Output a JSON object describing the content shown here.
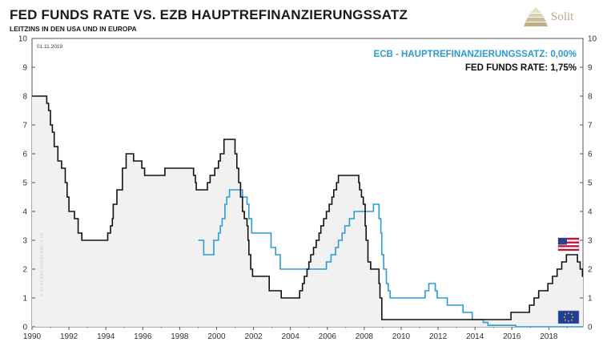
{
  "header": {
    "title": "FED FUNDS RATE  VS.  EZB HAUPTREFINANZIERUNGSSATZ",
    "subtitle": "LEITZINS IN DEN USA UND IN EUROPA"
  },
  "brand": {
    "logo_text": "Solit",
    "logo_color": "#b9a98a"
  },
  "watermark": "© BLACKBOXRESEARCH.DE",
  "chart_data": {
    "type": "line",
    "date_label": "01.11.2019",
    "xlim": [
      1990,
      2019.85
    ],
    "ylim": [
      0,
      10
    ],
    "x_ticks": [
      "1990",
      "1992",
      "1994",
      "1996",
      "1998",
      "2000",
      "2002",
      "2004",
      "2006",
      "2008",
      "2010",
      "2012",
      "2014",
      "2016",
      "2018"
    ],
    "y_ticks": [
      "0",
      "1",
      "2",
      "3",
      "4",
      "5",
      "6",
      "7",
      "8",
      "9",
      "10"
    ],
    "grid": false,
    "legend_placement": "top-right",
    "series": [
      {
        "name": "ECB - HAUPTREFINANZIERUNGSSATZ",
        "legend_label": "ECB - HAUPTREFINANZIERUNGSSATZ: 0,00%",
        "latest": "0,00%",
        "color": "#2b9bd6",
        "step": true,
        "points": [
          [
            1999.0,
            3.0
          ],
          [
            1999.3,
            2.5
          ],
          [
            1999.85,
            3.0
          ],
          [
            2000.1,
            3.25
          ],
          [
            2000.2,
            3.5
          ],
          [
            2000.3,
            3.75
          ],
          [
            2000.45,
            4.25
          ],
          [
            2000.55,
            4.5
          ],
          [
            2000.7,
            4.75
          ],
          [
            2001.4,
            4.5
          ],
          [
            2001.65,
            4.25
          ],
          [
            2001.75,
            3.75
          ],
          [
            2001.9,
            3.25
          ],
          [
            2002.95,
            2.75
          ],
          [
            2003.2,
            2.5
          ],
          [
            2003.45,
            2.0
          ],
          [
            2005.95,
            2.25
          ],
          [
            2006.2,
            2.5
          ],
          [
            2006.45,
            2.75
          ],
          [
            2006.6,
            3.0
          ],
          [
            2006.8,
            3.25
          ],
          [
            2006.95,
            3.5
          ],
          [
            2007.2,
            3.75
          ],
          [
            2007.45,
            4.0
          ],
          [
            2008.5,
            4.25
          ],
          [
            2008.8,
            3.75
          ],
          [
            2008.9,
            3.25
          ],
          [
            2008.95,
            2.5
          ],
          [
            2009.05,
            2.0
          ],
          [
            2009.2,
            1.5
          ],
          [
            2009.3,
            1.25
          ],
          [
            2009.4,
            1.0
          ],
          [
            2011.3,
            1.25
          ],
          [
            2011.5,
            1.5
          ],
          [
            2011.85,
            1.25
          ],
          [
            2011.95,
            1.0
          ],
          [
            2012.5,
            0.75
          ],
          [
            2013.35,
            0.5
          ],
          [
            2013.85,
            0.25
          ],
          [
            2014.45,
            0.15
          ],
          [
            2014.7,
            0.05
          ],
          [
            2016.2,
            0.0
          ],
          [
            2019.85,
            0.0
          ]
        ]
      },
      {
        "name": "FED FUNDS RATE",
        "legend_label": "FED FUNDS RATE: 1,75%",
        "latest": "1,75%",
        "color": "#111111",
        "fill": "#f1f1f1",
        "step": true,
        "points": [
          [
            1990.0,
            8.0
          ],
          [
            1990.8,
            7.75
          ],
          [
            1990.9,
            7.5
          ],
          [
            1991.0,
            7.0
          ],
          [
            1991.1,
            6.75
          ],
          [
            1991.2,
            6.25
          ],
          [
            1991.4,
            5.75
          ],
          [
            1991.6,
            5.5
          ],
          [
            1991.8,
            5.0
          ],
          [
            1991.9,
            4.5
          ],
          [
            1992.0,
            4.0
          ],
          [
            1992.3,
            3.75
          ],
          [
            1992.5,
            3.25
          ],
          [
            1992.7,
            3.0
          ],
          [
            1994.1,
            3.25
          ],
          [
            1994.25,
            3.5
          ],
          [
            1994.35,
            3.75
          ],
          [
            1994.4,
            4.25
          ],
          [
            1994.6,
            4.75
          ],
          [
            1994.9,
            5.5
          ],
          [
            1995.1,
            6.0
          ],
          [
            1995.5,
            5.75
          ],
          [
            1995.95,
            5.5
          ],
          [
            1996.1,
            5.25
          ],
          [
            1997.2,
            5.5
          ],
          [
            1998.75,
            5.25
          ],
          [
            1998.85,
            5.0
          ],
          [
            1998.9,
            4.75
          ],
          [
            1999.5,
            5.0
          ],
          [
            1999.65,
            5.25
          ],
          [
            1999.9,
            5.5
          ],
          [
            2000.1,
            5.75
          ],
          [
            2000.2,
            6.0
          ],
          [
            2000.4,
            6.5
          ],
          [
            2001.0,
            6.0
          ],
          [
            2001.1,
            5.5
          ],
          [
            2001.2,
            5.0
          ],
          [
            2001.3,
            4.5
          ],
          [
            2001.4,
            4.0
          ],
          [
            2001.5,
            3.75
          ],
          [
            2001.65,
            3.5
          ],
          [
            2001.7,
            3.0
          ],
          [
            2001.75,
            2.5
          ],
          [
            2001.85,
            2.0
          ],
          [
            2001.95,
            1.75
          ],
          [
            2002.85,
            1.25
          ],
          [
            2003.5,
            1.0
          ],
          [
            2004.5,
            1.25
          ],
          [
            2004.65,
            1.5
          ],
          [
            2004.75,
            1.75
          ],
          [
            2004.9,
            2.0
          ],
          [
            2005.0,
            2.25
          ],
          [
            2005.1,
            2.5
          ],
          [
            2005.25,
            2.75
          ],
          [
            2005.4,
            3.0
          ],
          [
            2005.55,
            3.25
          ],
          [
            2005.65,
            3.5
          ],
          [
            2005.8,
            3.75
          ],
          [
            2005.95,
            4.0
          ],
          [
            2006.1,
            4.25
          ],
          [
            2006.25,
            4.5
          ],
          [
            2006.35,
            4.75
          ],
          [
            2006.5,
            5.0
          ],
          [
            2006.6,
            5.25
          ],
          [
            2007.7,
            5.0
          ],
          [
            2007.75,
            4.75
          ],
          [
            2007.85,
            4.5
          ],
          [
            2007.95,
            4.25
          ],
          [
            2008.05,
            3.5
          ],
          [
            2008.1,
            3.0
          ],
          [
            2008.2,
            2.25
          ],
          [
            2008.35,
            2.0
          ],
          [
            2008.8,
            1.5
          ],
          [
            2008.85,
            1.0
          ],
          [
            2008.95,
            0.25
          ],
          [
            2015.95,
            0.5
          ],
          [
            2016.95,
            0.75
          ],
          [
            2017.2,
            1.0
          ],
          [
            2017.45,
            1.25
          ],
          [
            2017.95,
            1.5
          ],
          [
            2018.2,
            1.75
          ],
          [
            2018.45,
            2.0
          ],
          [
            2018.7,
            2.25
          ],
          [
            2018.95,
            2.5
          ],
          [
            2019.55,
            2.25
          ],
          [
            2019.7,
            2.0
          ],
          [
            2019.82,
            1.75
          ],
          [
            2019.85,
            1.75
          ]
        ]
      }
    ],
    "flags": [
      {
        "series": "FED FUNDS RATE",
        "icon": "us-flag-icon"
      },
      {
        "series": "ECB - HAUPTREFINANZIERUNGSSATZ",
        "icon": "eu-flag-icon"
      }
    ]
  }
}
